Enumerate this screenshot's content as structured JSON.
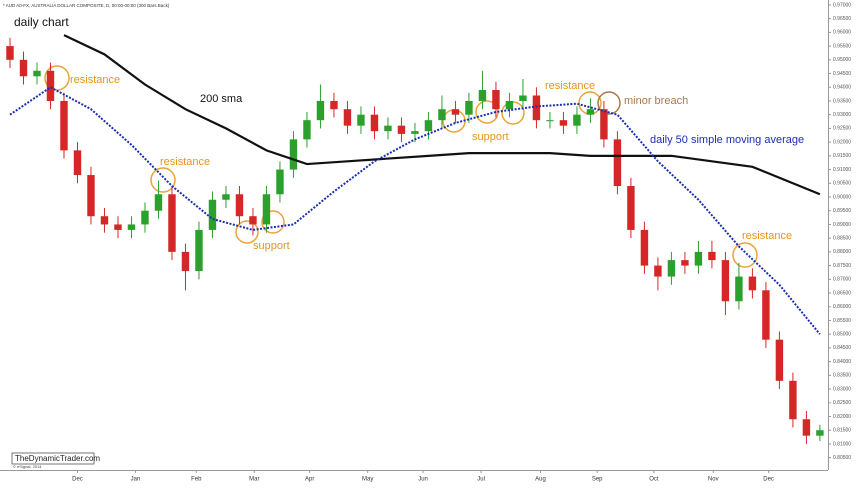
{
  "header": "* AUD A0-FX, AUSTRALIA DOLLAR COMPOSITE, D, 00:00-00:00 (300 Bars Back)",
  "watermark": "TheDynamicTrader.com",
  "copyright": "© eSignal, 2014",
  "chart_data": {
    "type": "candlestick",
    "title": "daily chart",
    "up_color": "#2ca02c",
    "down_color": "#d62728",
    "grid": false,
    "xlim": [
      -0.74,
      60.6
    ],
    "xticks": [
      {
        "value": 5,
        "label": "Dec"
      },
      {
        "value": 9.3,
        "label": "Jan"
      },
      {
        "value": 13.8,
        "label": "Feb"
      },
      {
        "value": 18.1,
        "label": "Mar"
      },
      {
        "value": 22.2,
        "label": "Apr"
      },
      {
        "value": 26.5,
        "label": "May"
      },
      {
        "value": 30.6,
        "label": "Jun"
      },
      {
        "value": 34.9,
        "label": "Jul"
      },
      {
        "value": 39.3,
        "label": "Aug"
      },
      {
        "value": 43.5,
        "label": "Sep"
      },
      {
        "value": 47.7,
        "label": "Oct"
      },
      {
        "value": 52.1,
        "label": "Nov"
      },
      {
        "value": 56.2,
        "label": "Dec"
      }
    ],
    "ylim": [
      0.8005,
      0.9718
    ],
    "yticks": [
      {
        "value": 0.97,
        "label": "0.97000"
      },
      {
        "value": 0.965,
        "label": "0.96500"
      },
      {
        "value": 0.96,
        "label": "0.96000"
      },
      {
        "value": 0.955,
        "label": "0.95500"
      },
      {
        "value": 0.95,
        "label": "0.95000"
      },
      {
        "value": 0.945,
        "label": "0.94500"
      },
      {
        "value": 0.94,
        "label": "0.94000"
      },
      {
        "value": 0.935,
        "label": "0.93500"
      },
      {
        "value": 0.93,
        "label": "0.93000"
      },
      {
        "value": 0.925,
        "label": "0.92500"
      },
      {
        "value": 0.92,
        "label": "0.92000"
      },
      {
        "value": 0.915,
        "label": "0.91500"
      },
      {
        "value": 0.91,
        "label": "0.91000"
      },
      {
        "value": 0.905,
        "label": "0.90500"
      },
      {
        "value": 0.9,
        "label": "0.90000"
      },
      {
        "value": 0.895,
        "label": "0.89500"
      },
      {
        "value": 0.89,
        "label": "0.89000"
      },
      {
        "value": 0.885,
        "label": "0.88500"
      },
      {
        "value": 0.88,
        "label": "0.88000"
      },
      {
        "value": 0.875,
        "label": "0.87500"
      },
      {
        "value": 0.87,
        "label": "0.87000"
      },
      {
        "value": 0.865,
        "label": "0.86500"
      },
      {
        "value": 0.86,
        "label": "0.86000"
      },
      {
        "value": 0.855,
        "label": "0.85500"
      },
      {
        "value": 0.85,
        "label": "0.85000"
      },
      {
        "value": 0.845,
        "label": "0.84500"
      },
      {
        "value": 0.84,
        "label": "0.84000"
      },
      {
        "value": 0.835,
        "label": "0.83500"
      },
      {
        "value": 0.83,
        "label": "0.83000"
      },
      {
        "value": 0.825,
        "label": "0.82500"
      },
      {
        "value": 0.82,
        "label": "0.82000"
      },
      {
        "value": 0.815,
        "label": "0.81500"
      },
      {
        "value": 0.81,
        "label": "0.81000"
      },
      {
        "value": 0.805,
        "label": "0.80500"
      }
    ],
    "open": [
      0.955,
      0.95,
      0.944,
      0.946,
      0.935,
      0.917,
      0.908,
      0.893,
      0.89,
      0.888,
      0.89,
      0.895,
      0.901,
      0.88,
      0.873,
      0.888,
      0.899,
      0.901,
      0.893,
      0.89,
      0.901,
      0.91,
      0.921,
      0.928,
      0.935,
      0.932,
      0.926,
      0.93,
      0.924,
      0.926,
      0.923,
      0.924,
      0.928,
      0.932,
      0.93,
      0.935,
      0.939,
      0.932,
      0.935,
      0.937,
      0.928,
      0.928,
      0.926,
      0.93,
      0.932,
      0.921,
      0.904,
      0.888,
      0.875,
      0.871,
      0.877,
      0.875,
      0.88,
      0.877,
      0.862,
      0.871,
      0.866,
      0.848,
      0.833,
      0.819,
      0.813
    ],
    "high": [
      0.958,
      0.953,
      0.949,
      0.949,
      0.938,
      0.92,
      0.911,
      0.896,
      0.893,
      0.893,
      0.898,
      0.906,
      0.904,
      0.883,
      0.891,
      0.902,
      0.904,
      0.904,
      0.896,
      0.904,
      0.913,
      0.924,
      0.931,
      0.941,
      0.938,
      0.935,
      0.933,
      0.933,
      0.929,
      0.929,
      0.927,
      0.931,
      0.937,
      0.935,
      0.938,
      0.946,
      0.942,
      0.938,
      0.943,
      0.94,
      0.931,
      0.931,
      0.933,
      0.936,
      0.935,
      0.924,
      0.907,
      0.891,
      0.878,
      0.88,
      0.88,
      0.884,
      0.884,
      0.88,
      0.876,
      0.874,
      0.869,
      0.851,
      0.836,
      0.822,
      0.817
    ],
    "low": [
      0.947,
      0.941,
      0.941,
      0.932,
      0.914,
      0.905,
      0.89,
      0.887,
      0.885,
      0.885,
      0.887,
      0.892,
      0.877,
      0.866,
      0.87,
      0.885,
      0.896,
      0.89,
      0.886,
      0.887,
      0.898,
      0.907,
      0.918,
      0.925,
      0.929,
      0.923,
      0.923,
      0.921,
      0.921,
      0.92,
      0.92,
      0.921,
      0.925,
      0.927,
      0.927,
      0.932,
      0.929,
      0.929,
      0.932,
      0.925,
      0.925,
      0.923,
      0.923,
      0.927,
      0.918,
      0.901,
      0.885,
      0.872,
      0.866,
      0.868,
      0.872,
      0.872,
      0.874,
      0.857,
      0.859,
      0.863,
      0.845,
      0.83,
      0.816,
      0.81,
      0.811
    ],
    "close": [
      0.95,
      0.944,
      0.946,
      0.935,
      0.917,
      0.908,
      0.893,
      0.89,
      0.888,
      0.89,
      0.895,
      0.901,
      0.88,
      0.873,
      0.888,
      0.899,
      0.901,
      0.893,
      0.89,
      0.901,
      0.91,
      0.921,
      0.928,
      0.935,
      0.932,
      0.926,
      0.93,
      0.924,
      0.926,
      0.923,
      0.924,
      0.928,
      0.932,
      0.93,
      0.935,
      0.939,
      0.932,
      0.935,
      0.937,
      0.928,
      0.928,
      0.926,
      0.93,
      0.932,
      0.921,
      0.904,
      0.888,
      0.875,
      0.871,
      0.877,
      0.875,
      0.88,
      0.877,
      0.862,
      0.871,
      0.866,
      0.848,
      0.833,
      0.819,
      0.813,
      0.815
    ],
    "series": [
      {
        "name": "200 sma",
        "color": "#111111",
        "style": "solid",
        "x": [
          4,
          7,
          10,
          13,
          16,
          19,
          22,
          25,
          28,
          31,
          34,
          37,
          40,
          43,
          46,
          49,
          52,
          55,
          58,
          60
        ],
        "values": [
          0.959,
          0.952,
          0.941,
          0.932,
          0.925,
          0.917,
          0.912,
          0.913,
          0.914,
          0.915,
          0.916,
          0.916,
          0.916,
          0.915,
          0.915,
          0.915,
          0.913,
          0.911,
          0.905,
          0.901
        ]
      },
      {
        "name": "daily 50 simple moving average",
        "color": "#1a2fb0",
        "style": "dotted",
        "x": [
          0,
          3,
          6,
          9,
          12,
          15,
          18,
          21,
          24,
          27,
          30,
          33,
          36,
          39,
          42,
          45,
          48,
          51,
          54,
          57,
          60
        ],
        "values": [
          0.93,
          0.94,
          0.932,
          0.919,
          0.904,
          0.892,
          0.888,
          0.89,
          0.902,
          0.913,
          0.921,
          0.927,
          0.931,
          0.933,
          0.934,
          0.93,
          0.913,
          0.899,
          0.882,
          0.868,
          0.85
        ]
      }
    ],
    "annotations": [
      "resistance",
      "resistance",
      "support",
      "support",
      "resistance",
      "minor breach",
      "resistance"
    ]
  }
}
